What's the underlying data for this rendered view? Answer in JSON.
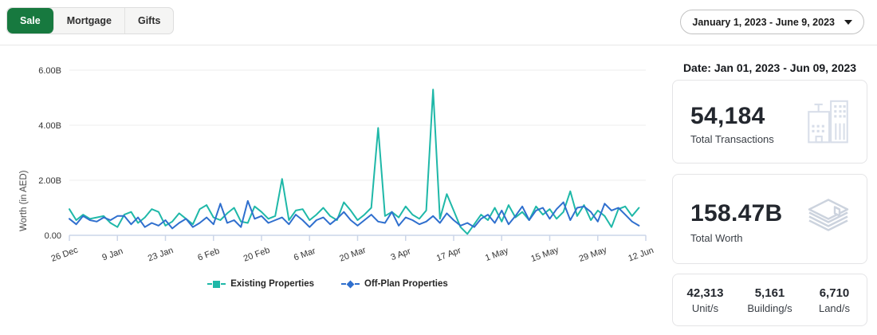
{
  "header": {
    "tabs": [
      {
        "label": "Sale",
        "active": true
      },
      {
        "label": "Mortgage",
        "active": false
      },
      {
        "label": "Gifts",
        "active": false
      }
    ],
    "date_range_dropdown": "January 1, 2023 - June 9, 2023"
  },
  "chart_data": {
    "type": "line",
    "title": "",
    "xlabel": "",
    "ylabel": "Worth (in AED)",
    "units": "AED billions",
    "legend_position": "bottom",
    "grid": "horizontal",
    "y_axis": {
      "max": 6,
      "ticks": [
        {
          "value": 6,
          "label": "6.00B"
        },
        {
          "value": 4,
          "label": "4.00B"
        },
        {
          "value": 2,
          "label": "2.00B"
        },
        {
          "value": 0,
          "label": "0.00"
        }
      ]
    },
    "x_axis": {
      "max_day": 168,
      "ticks": [
        {
          "day": 0,
          "label": "26 Dec"
        },
        {
          "day": 14,
          "label": "9 Jan"
        },
        {
          "day": 28,
          "label": "23 Jan"
        },
        {
          "day": 42,
          "label": "6 Feb"
        },
        {
          "day": 56,
          "label": "20 Feb"
        },
        {
          "day": 70,
          "label": "6 Mar"
        },
        {
          "day": 84,
          "label": "20 Mar"
        },
        {
          "day": 98,
          "label": "3 Apr"
        },
        {
          "day": 112,
          "label": "17 Apr"
        },
        {
          "day": 126,
          "label": "1 May"
        },
        {
          "day": 140,
          "label": "15 May"
        },
        {
          "day": 154,
          "label": "29 May"
        },
        {
          "day": 168,
          "label": "12 Jun"
        }
      ]
    },
    "series": [
      {
        "name": "Existing Properties",
        "color": "#1fb8a8",
        "marker": "square",
        "start_day": 0,
        "day_step": 2,
        "values": [
          0.95,
          0.55,
          0.75,
          0.6,
          0.65,
          0.7,
          0.45,
          0.3,
          0.75,
          0.85,
          0.45,
          0.65,
          0.95,
          0.85,
          0.35,
          0.5,
          0.8,
          0.6,
          0.4,
          0.95,
          1.1,
          0.65,
          0.55,
          0.8,
          1.0,
          0.5,
          0.45,
          1.05,
          0.85,
          0.6,
          0.7,
          2.05,
          0.55,
          0.9,
          0.95,
          0.55,
          0.75,
          1.0,
          0.7,
          0.55,
          1.2,
          0.9,
          0.55,
          0.75,
          1.0,
          3.9,
          0.7,
          0.85,
          0.65,
          1.05,
          0.75,
          0.6,
          0.9,
          5.3,
          0.6,
          1.5,
          0.9,
          0.3,
          0.05,
          0.4,
          0.75,
          0.55,
          1.0,
          0.5,
          1.1,
          0.65,
          0.85,
          0.55,
          1.05,
          0.75,
          0.95,
          0.6,
          0.85,
          1.6,
          0.7,
          1.1,
          0.55,
          0.9,
          0.7,
          0.3,
          0.95,
          1.05,
          0.7,
          1.0
        ]
      },
      {
        "name": "Off-Plan Properties",
        "color": "#2f6fce",
        "marker": "diamond",
        "start_day": 0,
        "day_step": 2,
        "values": [
          0.6,
          0.4,
          0.7,
          0.55,
          0.5,
          0.65,
          0.55,
          0.7,
          0.7,
          0.4,
          0.65,
          0.3,
          0.45,
          0.35,
          0.55,
          0.25,
          0.45,
          0.6,
          0.3,
          0.45,
          0.65,
          0.4,
          1.15,
          0.45,
          0.55,
          0.3,
          1.25,
          0.6,
          0.7,
          0.45,
          0.55,
          0.65,
          0.4,
          0.75,
          0.55,
          0.3,
          0.55,
          0.65,
          0.4,
          0.6,
          0.85,
          0.55,
          0.35,
          0.55,
          0.75,
          0.5,
          0.45,
          0.85,
          0.35,
          0.65,
          0.55,
          0.4,
          0.5,
          0.7,
          0.45,
          0.8,
          0.55,
          0.35,
          0.45,
          0.3,
          0.6,
          0.75,
          0.45,
          0.9,
          0.4,
          0.7,
          1.05,
          0.55,
          0.9,
          1.0,
          0.6,
          0.95,
          1.2,
          0.55,
          1.0,
          1.05,
          0.85,
          0.5,
          1.15,
          0.9,
          1.0,
          0.75,
          0.5,
          0.35
        ]
      }
    ]
  },
  "summary": {
    "date_label": "Date: Jan 01, 2023 - Jun 09, 2023",
    "cards": [
      {
        "value": "54,184",
        "label": "Total Transactions",
        "icon": "buildings-icon"
      },
      {
        "value": "158.47B",
        "label": "Total Worth",
        "icon": "money-stack-icon"
      }
    ],
    "breakdown": [
      {
        "value": "42,313",
        "label": "Unit/s"
      },
      {
        "value": "5,161",
        "label": "Building/s"
      },
      {
        "value": "6,710",
        "label": "Land/s"
      }
    ]
  },
  "colors": {
    "active_tab_green": "#17793f",
    "existing_series_teal": "#1fb8a8",
    "offplan_series_blue": "#2f6fce",
    "gridline": "#ededed",
    "axis_line": "#ccd6e8",
    "icon_gray": "#d8dee9"
  }
}
